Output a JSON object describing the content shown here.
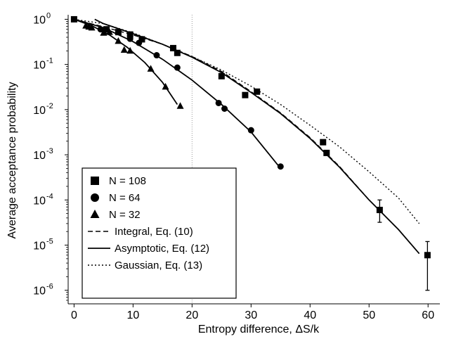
{
  "chart_data": {
    "type": "scatter",
    "title": "",
    "xlabel": "Entropy difference, ΔS/k",
    "ylabel": "Average acceptance probability",
    "xlim": [
      -1,
      62
    ],
    "ylim_log10": [
      -6.3,
      0.1
    ],
    "y_scale": "log",
    "x_ticks": [
      0,
      10,
      20,
      30,
      40,
      50,
      60
    ],
    "x_tick_labels": [
      "0",
      "10",
      "20",
      "30",
      "40",
      "50",
      "60"
    ],
    "y_ticks_exp": [
      0,
      -1,
      -2,
      -3,
      -4,
      -5,
      -6
    ],
    "y_tick_labels": [
      "10",
      "10",
      "10",
      "10",
      "10",
      "10",
      "10"
    ],
    "y_tick_exponents": [
      "0",
      "-1",
      "-2",
      "-3",
      "-4",
      "-5",
      "-6"
    ],
    "reference_line_x": 20,
    "legend_position": "lower-left",
    "series": [
      {
        "name": "N = 108",
        "marker": "square",
        "points": [
          {
            "x": 0,
            "y": 1.0
          },
          {
            "x": 5.5,
            "y": 0.6
          },
          {
            "x": 7.5,
            "y": 0.52
          },
          {
            "x": 9.5,
            "y": 0.46
          },
          {
            "x": 11.5,
            "y": 0.36
          },
          {
            "x": 16.8,
            "y": 0.23
          },
          {
            "x": 17.5,
            "y": 0.18
          },
          {
            "x": 25,
            "y": 0.055
          },
          {
            "x": 29,
            "y": 0.021
          },
          {
            "x": 31,
            "y": 0.025
          },
          {
            "x": 42.2,
            "y": 0.0019
          },
          {
            "x": 42.8,
            "y": 0.0011
          },
          {
            "x": 51.8,
            "y": 6e-05,
            "err_low": 3.2e-05,
            "err_high": 0.0001
          },
          {
            "x": 59.9,
            "y": 6e-06,
            "err_low": 1e-06,
            "err_high": 1.2e-05
          }
        ]
      },
      {
        "name": "N = 64",
        "marker": "circle",
        "points": [
          {
            "x": 4.5,
            "y": 0.6
          },
          {
            "x": 9.5,
            "y": 0.37
          },
          {
            "x": 11,
            "y": 0.3
          },
          {
            "x": 14,
            "y": 0.16
          },
          {
            "x": 17.5,
            "y": 0.085
          },
          {
            "x": 24.5,
            "y": 0.014
          },
          {
            "x": 25.5,
            "y": 0.0105
          },
          {
            "x": 30,
            "y": 0.0035
          },
          {
            "x": 35,
            "y": 0.00055
          }
        ]
      },
      {
        "name": "N = 32",
        "marker": "triangle",
        "points": [
          {
            "x": 2,
            "y": 0.72
          },
          {
            "x": 2.5,
            "y": 0.68
          },
          {
            "x": 3,
            "y": 0.65
          },
          {
            "x": 5,
            "y": 0.5
          },
          {
            "x": 6,
            "y": 0.52
          },
          {
            "x": 7.5,
            "y": 0.33
          },
          {
            "x": 8.5,
            "y": 0.21
          },
          {
            "x": 9.5,
            "y": 0.2
          },
          {
            "x": 13,
            "y": 0.08
          },
          {
            "x": 15.5,
            "y": 0.032
          },
          {
            "x": 18,
            "y": 0.012
          }
        ]
      }
    ],
    "curves": [
      {
        "name": "Integral, Eq. (10)",
        "style": "dashed",
        "points": [
          {
            "x": 0,
            "y": 1.0
          },
          {
            "x": 5,
            "y": 0.68
          },
          {
            "x": 10,
            "y": 0.45
          },
          {
            "x": 15,
            "y": 0.28
          },
          {
            "x": 20,
            "y": 0.15
          },
          {
            "x": 25,
            "y": 0.07
          },
          {
            "x": 30,
            "y": 0.025
          },
          {
            "x": 35,
            "y": 0.0085
          },
          {
            "x": 40,
            "y": 0.0024
          },
          {
            "x": 45,
            "y": 0.00055
          },
          {
            "x": 50,
            "y": 0.0001
          },
          {
            "x": 55,
            "y": 2.2e-05
          },
          {
            "x": 58.5,
            "y": 6.5e-06
          }
        ]
      },
      {
        "name": "Asymptotic, Eq. (12)",
        "style": "solid",
        "points": [
          {
            "x": 3.5,
            "y": 1.0
          },
          {
            "x": 5,
            "y": 0.8
          },
          {
            "x": 10,
            "y": 0.48
          },
          {
            "x": 15,
            "y": 0.28
          },
          {
            "x": 20,
            "y": 0.145
          },
          {
            "x": 25,
            "y": 0.066
          },
          {
            "x": 30,
            "y": 0.024
          },
          {
            "x": 35,
            "y": 0.0082
          },
          {
            "x": 40,
            "y": 0.0023
          },
          {
            "x": 45,
            "y": 0.00053
          },
          {
            "x": 50,
            "y": 0.0001
          },
          {
            "x": 55,
            "y": 2.2e-05
          },
          {
            "x": 58.5,
            "y": 6.5e-06
          }
        ]
      },
      {
        "name": "Gaussian, Eq. (13)",
        "style": "dotted",
        "points": [
          {
            "x": 0,
            "y": 1.0
          },
          {
            "x": 5,
            "y": 0.8
          },
          {
            "x": 10,
            "y": 0.5
          },
          {
            "x": 15,
            "y": 0.28
          },
          {
            "x": 20,
            "y": 0.15
          },
          {
            "x": 25,
            "y": 0.075
          },
          {
            "x": 30,
            "y": 0.033
          },
          {
            "x": 35,
            "y": 0.013
          },
          {
            "x": 40,
            "y": 0.0045
          },
          {
            "x": 45,
            "y": 0.0015
          },
          {
            "x": 50,
            "y": 0.00042
          },
          {
            "x": 55,
            "y": 0.00011
          },
          {
            "x": 58.5,
            "y": 3e-05
          }
        ]
      },
      {
        "name": "",
        "style": "solid",
        "points": [
          {
            "x": 0,
            "y": 1.0
          },
          {
            "x": 5,
            "y": 0.65
          },
          {
            "x": 10,
            "y": 0.32
          },
          {
            "x": 15,
            "y": 0.13
          },
          {
            "x": 20,
            "y": 0.045
          },
          {
            "x": 25,
            "y": 0.013
          },
          {
            "x": 30,
            "y": 0.0032
          },
          {
            "x": 35,
            "y": 0.0005
          }
        ]
      },
      {
        "name": "",
        "style": "solid",
        "points": [
          {
            "x": 0,
            "y": 1.0
          },
          {
            "x": 3,
            "y": 0.72
          },
          {
            "x": 6,
            "y": 0.45
          },
          {
            "x": 9,
            "y": 0.24
          },
          {
            "x": 12,
            "y": 0.11
          },
          {
            "x": 15,
            "y": 0.04
          },
          {
            "x": 17.5,
            "y": 0.013
          }
        ]
      }
    ]
  }
}
